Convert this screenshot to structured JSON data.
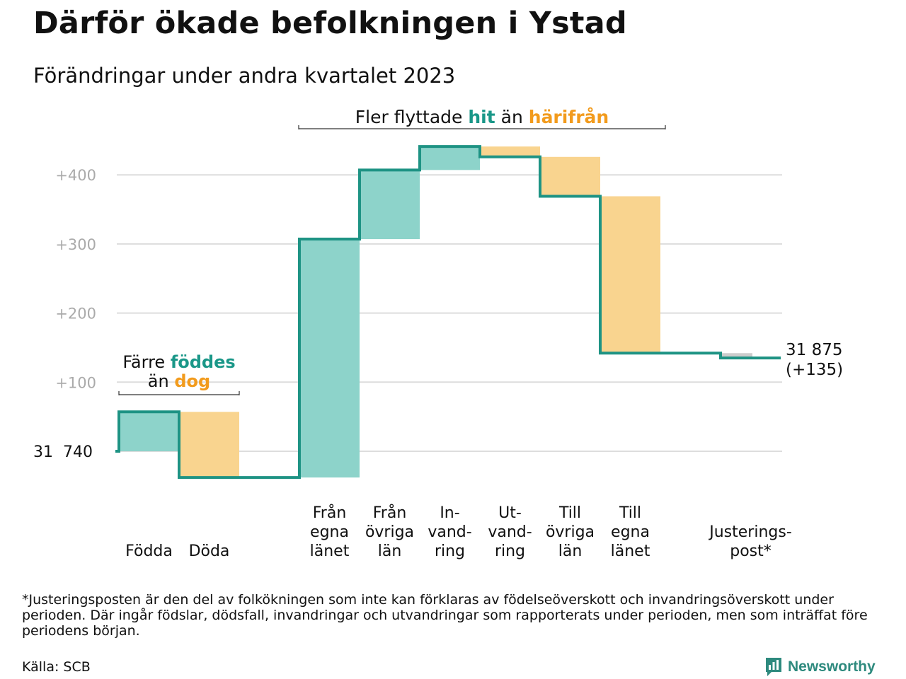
{
  "header": {
    "title": "Därför ökade befolkningen i Ystad",
    "subtitle": "Förändringar under andra kvartalet 2023"
  },
  "colors": {
    "increase_fill": "#8dd3ca",
    "decrease_fill": "#f9d48f",
    "adjustment_fill": "#cccccc",
    "line": "#1e9384",
    "teal_text": "#1a9788",
    "orange_text": "#f29b1d",
    "grid": "#dddddd",
    "tick_text": "#aaaaaa"
  },
  "chart_data": {
    "type": "waterfall",
    "start_label": "31  740",
    "start_value": 31740,
    "end_label": "31 875",
    "end_change_label": "(+135)",
    "end_value": 31875,
    "y_ticks": [
      {
        "value": 100,
        "label": "+100"
      },
      {
        "value": 200,
        "label": "+200"
      },
      {
        "value": 300,
        "label": "+300"
      },
      {
        "value": 400,
        "label": "+400"
      }
    ],
    "ylim": [
      -40,
      450
    ],
    "steps": [
      {
        "category": [
          "Födda"
        ],
        "change": 57,
        "kind": "increase"
      },
      {
        "category": [
          "Döda"
        ],
        "change": -95,
        "kind": "decrease"
      },
      {
        "category": [],
        "change": 0,
        "kind": "gap"
      },
      {
        "category": [
          "Från",
          "egna",
          "länet"
        ],
        "change": 345,
        "kind": "increase"
      },
      {
        "category": [
          "Från",
          "övriga",
          "län"
        ],
        "change": 100,
        "kind": "increase"
      },
      {
        "category": [
          "In-",
          "vand-",
          "ring"
        ],
        "change": 34,
        "kind": "increase"
      },
      {
        "category": [
          "Ut-",
          "vand-",
          "ring"
        ],
        "change": -15,
        "kind": "decrease"
      },
      {
        "category": [
          "Till",
          "övriga",
          "län"
        ],
        "change": -57,
        "kind": "decrease"
      },
      {
        "category": [
          "Till",
          "egna",
          "länet"
        ],
        "change": -227,
        "kind": "decrease"
      },
      {
        "category": [],
        "change": 0,
        "kind": "gap"
      },
      {
        "category": [
          "Justerings-",
          "post*"
        ],
        "change": -7,
        "kind": "adjustment"
      }
    ],
    "annotations": {
      "births": {
        "line1": "Färre",
        "hl1": "föddes",
        "line2": "än",
        "hl2": "dog"
      },
      "migration": {
        "pre": "Fler flyttade",
        "hl1": "hit",
        "mid": "än",
        "hl2": "härifrån"
      }
    }
  },
  "footer": {
    "footnote": "*Justeringsposten är den del av folkökningen som inte kan förklaras av födelseöverskott och invandringsöverskott under perioden. Där ingår födslar, dödsfall, invandringar och utvandringar som rapporterats under perioden, men som inträffat före periodens början.",
    "source": "Källa: SCB",
    "brand": "Newsworthy"
  }
}
